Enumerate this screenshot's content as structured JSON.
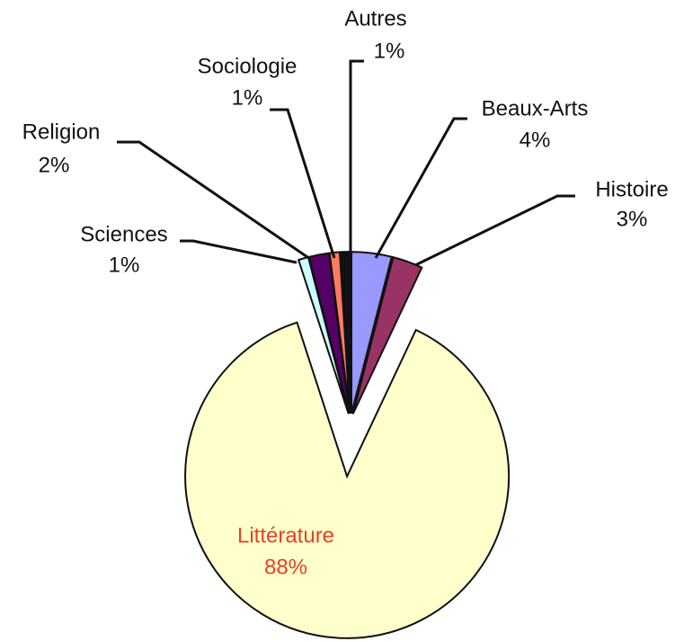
{
  "chart_data": {
    "type": "pie",
    "categories": [
      "Beaux-Arts",
      "Histoire",
      "Littérature",
      "Sciences",
      "Religion",
      "Sociologie",
      "Autres"
    ],
    "values": [
      4,
      3,
      88,
      1,
      2,
      1,
      1
    ],
    "value_labels": [
      "4%",
      "3%",
      "88%",
      "1%",
      "2%",
      "1%",
      "1%"
    ],
    "colors": [
      "#9999ff",
      "#993366",
      "#ffffcc",
      "#ccffff",
      "#550066",
      "#ff7c60",
      "#111111"
    ],
    "label_colors": [
      "#111111",
      "#111111",
      "#e8402a",
      "#111111",
      "#111111",
      "#111111",
      "#111111"
    ],
    "start_angle": 0,
    "direction": "clockwise"
  }
}
